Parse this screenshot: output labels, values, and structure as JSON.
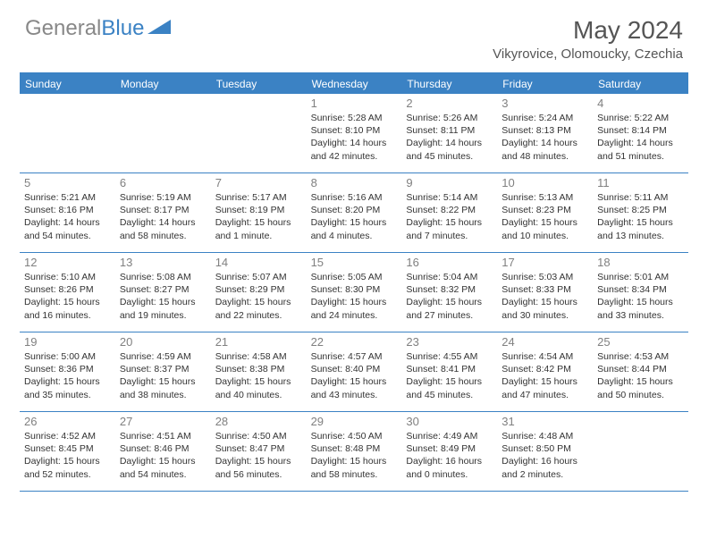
{
  "brand": {
    "part1": "General",
    "part2": "Blue"
  },
  "header": {
    "month_title": "May 2024",
    "location": "Vikyrovice, Olomoucky, Czechia"
  },
  "colors": {
    "accent": "#3b82c4",
    "header_text": "#ffffff",
    "daynum": "#808080",
    "body_text": "#333333",
    "title_text": "#555555",
    "logo_gray": "#888888",
    "background": "#ffffff"
  },
  "typography": {
    "month_title_fontsize": 28,
    "location_fontsize": 15,
    "day_header_fontsize": 12,
    "daynum_fontsize": 13,
    "info_fontsize": 10.5
  },
  "day_headers": [
    "Sunday",
    "Monday",
    "Tuesday",
    "Wednesday",
    "Thursday",
    "Friday",
    "Saturday"
  ],
  "weeks": [
    [
      {
        "day": "",
        "sunrise": "",
        "sunset": "",
        "daylight": ""
      },
      {
        "day": "",
        "sunrise": "",
        "sunset": "",
        "daylight": ""
      },
      {
        "day": "",
        "sunrise": "",
        "sunset": "",
        "daylight": ""
      },
      {
        "day": "1",
        "sunrise": "Sunrise: 5:28 AM",
        "sunset": "Sunset: 8:10 PM",
        "daylight": "Daylight: 14 hours and 42 minutes."
      },
      {
        "day": "2",
        "sunrise": "Sunrise: 5:26 AM",
        "sunset": "Sunset: 8:11 PM",
        "daylight": "Daylight: 14 hours and 45 minutes."
      },
      {
        "day": "3",
        "sunrise": "Sunrise: 5:24 AM",
        "sunset": "Sunset: 8:13 PM",
        "daylight": "Daylight: 14 hours and 48 minutes."
      },
      {
        "day": "4",
        "sunrise": "Sunrise: 5:22 AM",
        "sunset": "Sunset: 8:14 PM",
        "daylight": "Daylight: 14 hours and 51 minutes."
      }
    ],
    [
      {
        "day": "5",
        "sunrise": "Sunrise: 5:21 AM",
        "sunset": "Sunset: 8:16 PM",
        "daylight": "Daylight: 14 hours and 54 minutes."
      },
      {
        "day": "6",
        "sunrise": "Sunrise: 5:19 AM",
        "sunset": "Sunset: 8:17 PM",
        "daylight": "Daylight: 14 hours and 58 minutes."
      },
      {
        "day": "7",
        "sunrise": "Sunrise: 5:17 AM",
        "sunset": "Sunset: 8:19 PM",
        "daylight": "Daylight: 15 hours and 1 minute."
      },
      {
        "day": "8",
        "sunrise": "Sunrise: 5:16 AM",
        "sunset": "Sunset: 8:20 PM",
        "daylight": "Daylight: 15 hours and 4 minutes."
      },
      {
        "day": "9",
        "sunrise": "Sunrise: 5:14 AM",
        "sunset": "Sunset: 8:22 PM",
        "daylight": "Daylight: 15 hours and 7 minutes."
      },
      {
        "day": "10",
        "sunrise": "Sunrise: 5:13 AM",
        "sunset": "Sunset: 8:23 PM",
        "daylight": "Daylight: 15 hours and 10 minutes."
      },
      {
        "day": "11",
        "sunrise": "Sunrise: 5:11 AM",
        "sunset": "Sunset: 8:25 PM",
        "daylight": "Daylight: 15 hours and 13 minutes."
      }
    ],
    [
      {
        "day": "12",
        "sunrise": "Sunrise: 5:10 AM",
        "sunset": "Sunset: 8:26 PM",
        "daylight": "Daylight: 15 hours and 16 minutes."
      },
      {
        "day": "13",
        "sunrise": "Sunrise: 5:08 AM",
        "sunset": "Sunset: 8:27 PM",
        "daylight": "Daylight: 15 hours and 19 minutes."
      },
      {
        "day": "14",
        "sunrise": "Sunrise: 5:07 AM",
        "sunset": "Sunset: 8:29 PM",
        "daylight": "Daylight: 15 hours and 22 minutes."
      },
      {
        "day": "15",
        "sunrise": "Sunrise: 5:05 AM",
        "sunset": "Sunset: 8:30 PM",
        "daylight": "Daylight: 15 hours and 24 minutes."
      },
      {
        "day": "16",
        "sunrise": "Sunrise: 5:04 AM",
        "sunset": "Sunset: 8:32 PM",
        "daylight": "Daylight: 15 hours and 27 minutes."
      },
      {
        "day": "17",
        "sunrise": "Sunrise: 5:03 AM",
        "sunset": "Sunset: 8:33 PM",
        "daylight": "Daylight: 15 hours and 30 minutes."
      },
      {
        "day": "18",
        "sunrise": "Sunrise: 5:01 AM",
        "sunset": "Sunset: 8:34 PM",
        "daylight": "Daylight: 15 hours and 33 minutes."
      }
    ],
    [
      {
        "day": "19",
        "sunrise": "Sunrise: 5:00 AM",
        "sunset": "Sunset: 8:36 PM",
        "daylight": "Daylight: 15 hours and 35 minutes."
      },
      {
        "day": "20",
        "sunrise": "Sunrise: 4:59 AM",
        "sunset": "Sunset: 8:37 PM",
        "daylight": "Daylight: 15 hours and 38 minutes."
      },
      {
        "day": "21",
        "sunrise": "Sunrise: 4:58 AM",
        "sunset": "Sunset: 8:38 PM",
        "daylight": "Daylight: 15 hours and 40 minutes."
      },
      {
        "day": "22",
        "sunrise": "Sunrise: 4:57 AM",
        "sunset": "Sunset: 8:40 PM",
        "daylight": "Daylight: 15 hours and 43 minutes."
      },
      {
        "day": "23",
        "sunrise": "Sunrise: 4:55 AM",
        "sunset": "Sunset: 8:41 PM",
        "daylight": "Daylight: 15 hours and 45 minutes."
      },
      {
        "day": "24",
        "sunrise": "Sunrise: 4:54 AM",
        "sunset": "Sunset: 8:42 PM",
        "daylight": "Daylight: 15 hours and 47 minutes."
      },
      {
        "day": "25",
        "sunrise": "Sunrise: 4:53 AM",
        "sunset": "Sunset: 8:44 PM",
        "daylight": "Daylight: 15 hours and 50 minutes."
      }
    ],
    [
      {
        "day": "26",
        "sunrise": "Sunrise: 4:52 AM",
        "sunset": "Sunset: 8:45 PM",
        "daylight": "Daylight: 15 hours and 52 minutes."
      },
      {
        "day": "27",
        "sunrise": "Sunrise: 4:51 AM",
        "sunset": "Sunset: 8:46 PM",
        "daylight": "Daylight: 15 hours and 54 minutes."
      },
      {
        "day": "28",
        "sunrise": "Sunrise: 4:50 AM",
        "sunset": "Sunset: 8:47 PM",
        "daylight": "Daylight: 15 hours and 56 minutes."
      },
      {
        "day": "29",
        "sunrise": "Sunrise: 4:50 AM",
        "sunset": "Sunset: 8:48 PM",
        "daylight": "Daylight: 15 hours and 58 minutes."
      },
      {
        "day": "30",
        "sunrise": "Sunrise: 4:49 AM",
        "sunset": "Sunset: 8:49 PM",
        "daylight": "Daylight: 16 hours and 0 minutes."
      },
      {
        "day": "31",
        "sunrise": "Sunrise: 4:48 AM",
        "sunset": "Sunset: 8:50 PM",
        "daylight": "Daylight: 16 hours and 2 minutes."
      },
      {
        "day": "",
        "sunrise": "",
        "sunset": "",
        "daylight": ""
      }
    ]
  ]
}
